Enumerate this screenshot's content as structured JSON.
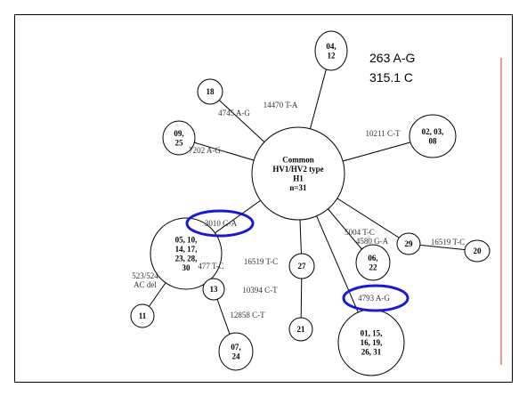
{
  "notes": [
    "263 A-G",
    "315.1 C"
  ],
  "nodes": [
    {
      "lines": [
        "Common",
        "HV1/HV2 type",
        "H1",
        "n=31"
      ]
    },
    {
      "lines": [
        "18"
      ]
    },
    {
      "lines": [
        "04,",
        "12"
      ]
    },
    {
      "lines": [
        "02, 03,",
        "08"
      ]
    },
    {
      "lines": [
        "09,",
        "25"
      ]
    },
    {
      "lines": [
        "05, 10,",
        "14, 17,",
        "23, 28,",
        "30"
      ]
    },
    {
      "lines": [
        "29"
      ]
    },
    {
      "lines": [
        "20"
      ]
    },
    {
      "lines": [
        "27"
      ]
    },
    {
      "lines": [
        "06,",
        "22"
      ]
    },
    {
      "lines": [
        "13"
      ]
    },
    {
      "lines": [
        "11"
      ]
    },
    {
      "lines": [
        "21"
      ]
    },
    {
      "lines": [
        "07,",
        "24"
      ]
    },
    {
      "lines": [
        "01, 15,",
        "16, 19,",
        "26, 31"
      ]
    }
  ],
  "edges": [
    {
      "label": [
        "4745 A-G"
      ]
    },
    {
      "label": [
        "14470 T-A"
      ]
    },
    {
      "label": [
        "10211 C-T"
      ]
    },
    {
      "label": [
        "7202 A-G"
      ]
    },
    {
      "label": [
        "3010 G-A"
      ]
    },
    {
      "label": [
        "4580 G-A"
      ]
    },
    {
      "label": [
        "16519 T-C"
      ]
    },
    {
      "label": [
        "16519 T-C"
      ]
    },
    {
      "label": [
        "5004 T-C"
      ]
    },
    {
      "label": [
        "477 T-C"
      ]
    },
    {
      "label": [
        "523/524",
        "AC del"
      ]
    },
    {
      "label": [
        "10394 C-T"
      ]
    },
    {
      "label": [
        "4793 A-G"
      ]
    },
    {
      "label": [
        "12858 C-T"
      ]
    }
  ]
}
